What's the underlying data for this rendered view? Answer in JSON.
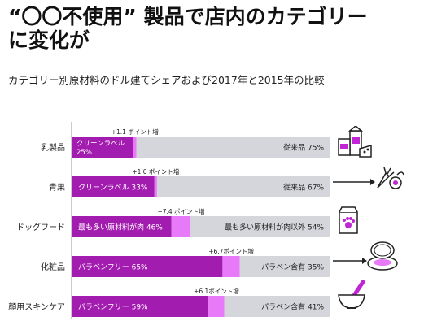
{
  "header": {
    "title_line1": "“〇〇不使用” 製品で店内のカテゴリー",
    "title_line2": "に変化が",
    "subtitle": "カテゴリー別原材料のドル建てシェアおよび2017年と2015年の比較"
  },
  "colors": {
    "base": "#a21caf",
    "increase": "#e879f9",
    "rest": "#d4d6db"
  },
  "chart_data": {
    "type": "bar",
    "orientation": "horizontal",
    "stacked": true,
    "scale": [
      0,
      100
    ],
    "categories": [
      "乳製品",
      "青果",
      "ドッグフード",
      "化粧品",
      "顔用スキンケア"
    ],
    "series": [
      {
        "name": "クリーンラベル / 最も多い原材料が肉 / パラベンフリー",
        "values": [
          23.9,
          32.0,
          38.6,
          58.3,
          52.9
        ]
      },
      {
        "name": "ポイント増",
        "values": [
          1.1,
          1.0,
          7.4,
          6.7,
          6.1
        ]
      },
      {
        "name": "従来品 / 最も多い原材料が肉以外 / パラベン含有",
        "values": [
          75,
          67,
          54,
          35,
          41
        ]
      }
    ],
    "bars": [
      {
        "category": "乳製品",
        "base_label": "クリーンラベル",
        "base_label2": "25%",
        "increase_label": "+1.1 ポイント増",
        "rest_label": "従来品 75%"
      },
      {
        "category": "青果",
        "base_label": "クリーンラベル 33%",
        "base_label2": "",
        "increase_label": "+1.0 ポイント増",
        "rest_label": "従来品 67%"
      },
      {
        "category": "ドッグフード",
        "base_label": "最も多い原材料が肉 46%",
        "base_label2": "",
        "increase_label": "+7.4 ポイント増",
        "rest_label": "最も多い原材料が肉以外 54%"
      },
      {
        "category": "化粧品",
        "base_label": "パラベンフリー 65%",
        "base_label2": "",
        "increase_label": "+6.7ポイント増",
        "rest_label": "パラベン含有 35%"
      },
      {
        "category": "顔用スキンケア",
        "base_label": "パラベンフリー 59%",
        "base_label2": "",
        "increase_label": "+6.1ポイント増",
        "rest_label": "パラベン含有 41%"
      }
    ]
  },
  "icons": [
    "dairy-icon",
    "produce-icon",
    "dog-food-icon",
    "compact-icon",
    "mortar-pestle-icon"
  ]
}
